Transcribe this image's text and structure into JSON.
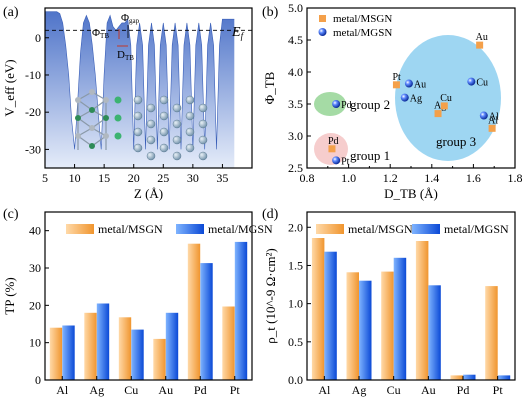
{
  "colors": {
    "msgn_orange": "#f4a04a",
    "mgsn_blue": "#1f5fe0",
    "veff_fill": "#6c8fd6",
    "veff_light": "#dce6f8",
    "ellipse_blue": "#7ec8ee",
    "ellipse_green": "#8fd28f",
    "ellipse_pink": "#f5c8c8",
    "annot_red": "#c0392b"
  },
  "chart_data": [
    {
      "panel": "(a)",
      "type": "area",
      "xlabel": "Z (Å)",
      "ylabel": "V_eff (eV)",
      "xlim": [
        5,
        40
      ],
      "ylim": [
        -35,
        8
      ],
      "xticks": [
        "5",
        "10",
        "15",
        "20",
        "25",
        "30",
        "35"
      ],
      "yticks": [
        "-30",
        "-20",
        "-10",
        "0"
      ],
      "fermi_level": 2.0,
      "fermi_label": "E_f",
      "annotations": [
        "Φ_gap",
        "Φ_TB",
        "D_TB"
      ],
      "x": [
        5,
        6,
        7,
        7.5,
        8.0,
        8.5,
        9.0,
        9.5,
        10.0,
        10.5,
        11.0,
        11.5,
        12.0,
        12.5,
        13.0,
        13.5,
        14.0,
        14.5,
        15.0,
        15.5,
        16.0,
        16.5,
        17.0,
        17.5,
        18.0,
        18.5,
        19.0,
        19.5,
        20.0,
        20.5,
        21.0,
        21.5,
        22.0,
        22.5,
        23.0,
        23.5,
        24.0,
        24.5,
        25.0,
        25.5,
        26.0,
        26.5,
        27.0,
        27.5,
        28.0,
        28.5,
        29.0,
        29.5,
        30.0,
        30.5,
        31.0,
        31.5,
        32.0,
        32.5,
        33.0,
        33.5,
        34.0,
        34.5,
        35,
        36,
        37
      ],
      "y": [
        7,
        7,
        7,
        6.5,
        4,
        -2,
        -10,
        -22,
        -30,
        -18,
        -4,
        4,
        6,
        4,
        -2,
        -10,
        -20,
        -30,
        -10,
        4,
        6,
        3,
        2,
        3,
        4,
        4,
        5,
        -2,
        -30,
        -2,
        4,
        -2,
        -30,
        -2,
        4,
        -2,
        -30,
        -2,
        4,
        -2,
        -30,
        -2,
        4,
        -2,
        -30,
        -2,
        4,
        -2,
        -30,
        -2,
        4,
        -2,
        -30,
        -2,
        4,
        -2,
        -30,
        -2,
        5,
        5,
        5
      ]
    },
    {
      "panel": "(b)",
      "type": "scatter",
      "xlabel": "D_TB (Å)",
      "ylabel": "Φ_TB",
      "xlim": [
        0.8,
        1.8
      ],
      "ylim": [
        2.5,
        5.0
      ],
      "xticks": [
        "0.8",
        "0.9",
        "1.0",
        "1.1",
        "1.2",
        "1.3",
        "1.4",
        "1.5",
        "1.6",
        "1.7",
        "1.8"
      ],
      "yticks": [
        "2.5",
        "3.0",
        "3.5",
        "4.0",
        "4.5",
        "5.0"
      ],
      "legend": [
        "metal/MSGN",
        "metal/MGSN"
      ],
      "legend_position": "top-left",
      "group_labels": [
        "group 1",
        "group 2",
        "group 3"
      ],
      "series": [
        {
          "name": "metal/MSGN",
          "points": [
            {
              "label": "Al",
              "x": 1.69,
              "y": 3.12
            },
            {
              "label": "Ag",
              "x": 1.43,
              "y": 3.35
            },
            {
              "label": "Cu",
              "x": 1.46,
              "y": 3.47
            },
            {
              "label": "Au",
              "x": 1.63,
              "y": 4.42
            },
            {
              "label": "Pd",
              "x": 0.92,
              "y": 2.8
            },
            {
              "label": "Pt",
              "x": 1.23,
              "y": 3.8
            }
          ]
        },
        {
          "name": "metal/MGSN",
          "points": [
            {
              "label": "Al",
              "x": 1.65,
              "y": 3.32
            },
            {
              "label": "Ag",
              "x": 1.27,
              "y": 3.6
            },
            {
              "label": "Cu",
              "x": 1.59,
              "y": 3.85
            },
            {
              "label": "Au",
              "x": 1.29,
              "y": 3.82
            },
            {
              "label": "Pd",
              "x": 0.94,
              "y": 3.5
            },
            {
              "label": "Pt",
              "x": 0.94,
              "y": 2.62
            }
          ]
        }
      ]
    },
    {
      "panel": "(c)",
      "type": "bar",
      "ylabel": "TP (%)",
      "ylim": [
        0,
        45
      ],
      "yticks": [
        "0",
        "10",
        "20",
        "30",
        "40"
      ],
      "categories": [
        "Al",
        "Ag",
        "Cu",
        "Au",
        "Pd",
        "Pt"
      ],
      "legend_position": "top",
      "series": [
        {
          "name": "metal/MSGN",
          "values": [
            14.0,
            18.0,
            16.8,
            11.0,
            36.5,
            19.7
          ]
        },
        {
          "name": "metal/MGSN",
          "values": [
            14.6,
            20.5,
            13.5,
            18.0,
            31.3,
            37.0
          ]
        }
      ]
    },
    {
      "panel": "(d)",
      "type": "bar",
      "ylabel": "ρ_t (10^-9 Ω·cm²)",
      "ylim": [
        0,
        2.2
      ],
      "yticks": [
        "0.0",
        "0.5",
        "1.0",
        "1.5",
        "2.0"
      ],
      "categories": [
        "Al",
        "Ag",
        "Cu",
        "Au",
        "Pd",
        "Pt"
      ],
      "legend_position": "top",
      "series": [
        {
          "name": "metal/MSGN",
          "values": [
            1.86,
            1.41,
            1.42,
            1.82,
            0.06,
            1.23
          ]
        },
        {
          "name": "metal/MGSN",
          "values": [
            1.68,
            1.3,
            1.6,
            1.24,
            0.07,
            0.06
          ]
        }
      ]
    }
  ]
}
